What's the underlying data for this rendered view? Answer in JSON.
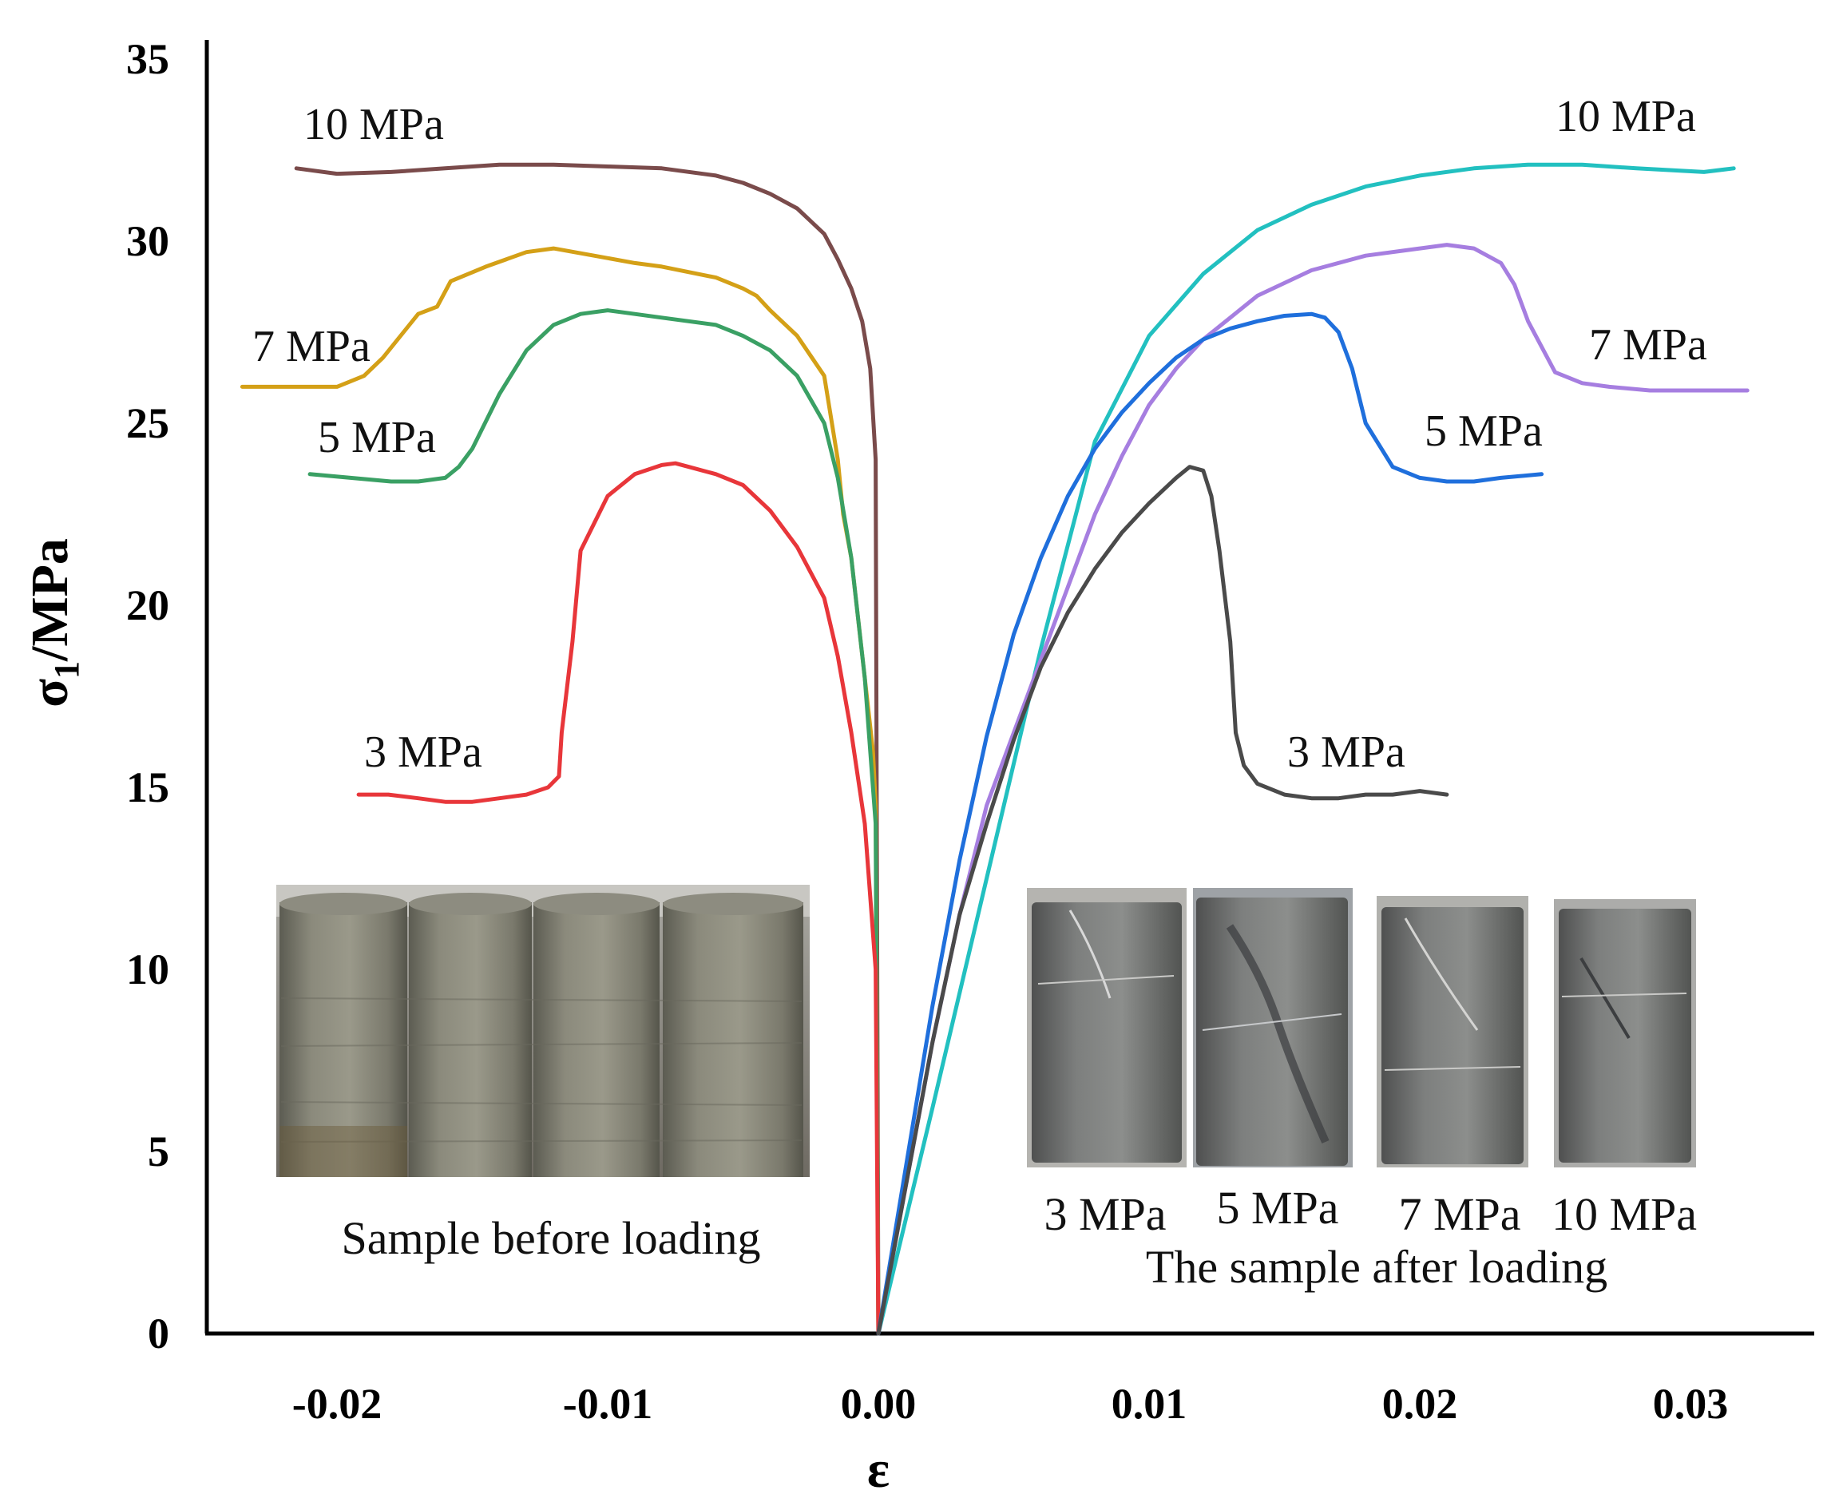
{
  "chart_data": {
    "type": "line",
    "xlabel": "ε",
    "ylabel_main": "σ",
    "ylabel_sub": "1",
    "ylabel_unit": "/MPa",
    "xlim": [
      -0.0255,
      0.035
    ],
    "ylim": [
      0,
      35
    ],
    "x_ticks": [
      {
        "value": -0.02,
        "label": "-0.02"
      },
      {
        "value": -0.01,
        "label": "-0.01"
      },
      {
        "value": 0.0,
        "label": "0.00"
      },
      {
        "value": 0.01,
        "label": "0.01"
      },
      {
        "value": 0.02,
        "label": "0.02"
      },
      {
        "value": 0.03,
        "label": "0.03"
      }
    ],
    "y_ticks": [
      {
        "value": 0,
        "label": "0"
      },
      {
        "value": 5,
        "label": "5"
      },
      {
        "value": 10,
        "label": "10"
      },
      {
        "value": 15,
        "label": "15"
      },
      {
        "value": 20,
        "label": "20"
      },
      {
        "value": 25,
        "label": "25"
      },
      {
        "value": 30,
        "label": "30"
      },
      {
        "value": 35,
        "label": "35"
      }
    ],
    "grid": false,
    "series": [
      {
        "id": "lat-10",
        "color": "#7a4b4b",
        "label": "10 MPa",
        "x": [
          0,
          -0.0001,
          -0.0003,
          -0.0006,
          -0.001,
          -0.0015,
          -0.002,
          -0.003,
          -0.004,
          -0.005,
          -0.006,
          -0.008,
          -0.01,
          -0.012,
          -0.014,
          -0.016,
          -0.018,
          -0.02,
          -0.0215
        ],
        "y": [
          0,
          24,
          26.5,
          27.8,
          28.7,
          29.5,
          30.2,
          30.9,
          31.3,
          31.6,
          31.8,
          32.0,
          32.05,
          32.1,
          32.1,
          32.0,
          31.9,
          31.85,
          32.0
        ]
      },
      {
        "id": "lat-7",
        "color": "#d4a017",
        "label": "7 MPa",
        "x": [
          0,
          -0.0001,
          -0.0002,
          -0.0005,
          -0.001,
          -0.0013,
          -0.0015,
          -0.002,
          -0.003,
          -0.004,
          -0.0045,
          -0.005,
          -0.006,
          -0.008,
          -0.009,
          -0.0105,
          -0.012,
          -0.013,
          -0.0145,
          -0.0158,
          -0.0163,
          -0.017,
          -0.0183,
          -0.019,
          -0.02,
          -0.022,
          -0.0235
        ],
        "y": [
          0,
          14.5,
          16,
          18,
          21.3,
          22.5,
          24,
          26.3,
          27.4,
          28.1,
          28.5,
          28.7,
          29.0,
          29.3,
          29.4,
          29.6,
          29.8,
          29.7,
          29.3,
          28.9,
          28.2,
          28.0,
          26.8,
          26.3,
          26.0,
          26.0,
          26.0
        ]
      },
      {
        "id": "lat-5",
        "color": "#3aa064",
        "label": "5 MPa",
        "x": [
          0,
          -0.0001,
          -0.0005,
          -0.001,
          -0.0015,
          -0.002,
          -0.003,
          -0.004,
          -0.005,
          -0.006,
          -0.008,
          -0.009,
          -0.01,
          -0.011,
          -0.012,
          -0.013,
          -0.014,
          -0.015,
          -0.0155,
          -0.016,
          -0.017,
          -0.018,
          -0.0195,
          -0.021
        ],
        "y": [
          0,
          14,
          18,
          21.3,
          23.5,
          25,
          26.3,
          27.0,
          27.4,
          27.7,
          27.9,
          28.0,
          28.1,
          28.0,
          27.7,
          27.0,
          25.8,
          24.3,
          23.8,
          23.5,
          23.4,
          23.4,
          23.5,
          23.6
        ]
      },
      {
        "id": "lat-3",
        "color": "#e8363a",
        "label": "3 MPa",
        "x": [
          0,
          -0.0001,
          -0.0005,
          -0.001,
          -0.0015,
          -0.002,
          -0.003,
          -0.004,
          -0.005,
          -0.006,
          -0.007,
          -0.0075,
          -0.008,
          -0.009,
          -0.01,
          -0.011,
          -0.0113,
          -0.0117,
          -0.0118,
          -0.0122,
          -0.013,
          -0.014,
          -0.015,
          -0.016,
          -0.017,
          -0.0181,
          -0.0192
        ],
        "y": [
          0,
          10,
          14,
          16.5,
          18.6,
          20.2,
          21.6,
          22.6,
          23.3,
          23.6,
          23.8,
          23.9,
          23.85,
          23.6,
          23.0,
          21.5,
          19.0,
          16.5,
          15.3,
          15.0,
          14.8,
          14.7,
          14.6,
          14.6,
          14.7,
          14.8,
          14.8
        ]
      },
      {
        "id": "ax-10",
        "color": "#22c0c0",
        "label": "10 MPa",
        "x": [
          0,
          0.002,
          0.004,
          0.006,
          0.008,
          0.01,
          0.012,
          0.014,
          0.016,
          0.018,
          0.02,
          0.022,
          0.024,
          0.026,
          0.028,
          0.0305,
          0.0316
        ],
        "y": [
          0,
          6.2,
          12.5,
          18.8,
          24.5,
          27.4,
          29.1,
          30.3,
          31.0,
          31.5,
          31.8,
          32.0,
          32.1,
          32.1,
          32.0,
          31.9,
          32.0
        ]
      },
      {
        "id": "ax-7",
        "color": "#a67ee0",
        "label": "7 MPa",
        "x": [
          0,
          0.001,
          0.002,
          0.003,
          0.004,
          0.005,
          0.006,
          0.007,
          0.008,
          0.009,
          0.01,
          0.011,
          0.012,
          0.013,
          0.014,
          0.016,
          0.018,
          0.02,
          0.021,
          0.022,
          0.023,
          0.0235,
          0.024,
          0.025,
          0.026,
          0.027,
          0.0285,
          0.03,
          0.0321
        ],
        "y": [
          0,
          4,
          8,
          11.5,
          14.5,
          16.5,
          18.5,
          20.5,
          22.5,
          24.1,
          25.5,
          26.5,
          27.3,
          27.9,
          28.5,
          29.2,
          29.6,
          29.8,
          29.9,
          29.8,
          29.4,
          28.8,
          27.8,
          26.4,
          26.1,
          26.0,
          25.9,
          25.9,
          25.9
        ]
      },
      {
        "id": "ax-5",
        "color": "#1f6fdc",
        "label": "5 MPa",
        "x": [
          0,
          0.001,
          0.002,
          0.003,
          0.004,
          0.005,
          0.006,
          0.007,
          0.008,
          0.009,
          0.01,
          0.011,
          0.012,
          0.013,
          0.014,
          0.015,
          0.016,
          0.0165,
          0.017,
          0.0175,
          0.018,
          0.019,
          0.02,
          0.021,
          0.022,
          0.023,
          0.0245
        ],
        "y": [
          0,
          4.5,
          9,
          13,
          16.4,
          19.2,
          21.3,
          23.0,
          24.3,
          25.3,
          26.1,
          26.8,
          27.3,
          27.6,
          27.8,
          27.95,
          28.0,
          27.9,
          27.5,
          26.5,
          25.0,
          23.8,
          23.5,
          23.4,
          23.4,
          23.5,
          23.6
        ]
      },
      {
        "id": "ax-3",
        "color": "#4a4a4a",
        "label": "3 MPa",
        "x": [
          0,
          0.001,
          0.002,
          0.003,
          0.004,
          0.005,
          0.006,
          0.007,
          0.008,
          0.009,
          0.01,
          0.011,
          0.0115,
          0.012,
          0.0123,
          0.0126,
          0.013,
          0.0132,
          0.0135,
          0.014,
          0.015,
          0.016,
          0.017,
          0.018,
          0.019,
          0.02,
          0.021
        ],
        "y": [
          0,
          4,
          8,
          11.5,
          14,
          16.3,
          18.3,
          19.8,
          21.0,
          22.0,
          22.8,
          23.5,
          23.8,
          23.7,
          23.0,
          21.5,
          19.0,
          16.5,
          15.6,
          15.1,
          14.8,
          14.7,
          14.7,
          14.8,
          14.8,
          14.9,
          14.8
        ]
      }
    ],
    "annotations": [
      {
        "id": "ann-lat-10",
        "text": "10 MPa"
      },
      {
        "id": "ann-lat-7",
        "text": "7 MPa"
      },
      {
        "id": "ann-lat-5",
        "text": "5 MPa"
      },
      {
        "id": "ann-lat-3",
        "text": "3 MPa"
      },
      {
        "id": "ann-ax-10",
        "text": "10 MPa"
      },
      {
        "id": "ann-ax-7",
        "text": "7 MPa"
      },
      {
        "id": "ann-ax-5",
        "text": "5 MPa"
      },
      {
        "id": "ann-ax-3",
        "text": "3 MPa"
      }
    ]
  },
  "photos": {
    "before_caption": "Sample before loading",
    "after_caption": "The sample after loading",
    "after_labels": [
      "3 MPa",
      "5 MPa",
      "7 MPa",
      "10 MPa"
    ]
  }
}
